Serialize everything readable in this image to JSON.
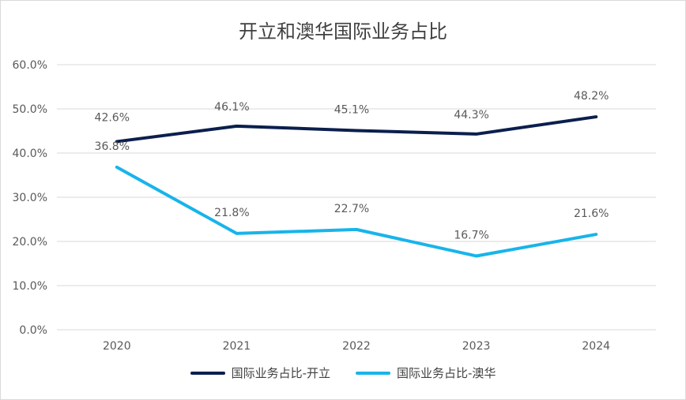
{
  "colors": {
    "series_1": "#0b1f4d",
    "series_2": "#18b4ea",
    "grid": "#d9d9d9",
    "text": "#595959"
  },
  "chart_data": {
    "type": "line",
    "title": "开立和澳华国际业务占比",
    "x": [
      "2020",
      "2021",
      "2022",
      "2023",
      "2024"
    ],
    "ylim": [
      0,
      60
    ],
    "yticks": [
      "0.0%",
      "10.0%",
      "20.0%",
      "30.0%",
      "40.0%",
      "50.0%",
      "60.0%"
    ],
    "grid": "horizontal",
    "legend_position": "bottom",
    "series": [
      {
        "name": "国际业务占比-开立",
        "values": [
          42.6,
          46.1,
          45.1,
          44.3,
          48.2
        ],
        "labels": [
          "42.6%",
          "46.1%",
          "45.1%",
          "44.3%",
          "48.2%"
        ]
      },
      {
        "name": "国际业务占比-澳华",
        "values": [
          36.8,
          21.8,
          22.7,
          16.7,
          21.6
        ],
        "labels": [
          "36.8%",
          "21.8%",
          "22.7%",
          "16.7%",
          "21.6%"
        ]
      }
    ]
  }
}
